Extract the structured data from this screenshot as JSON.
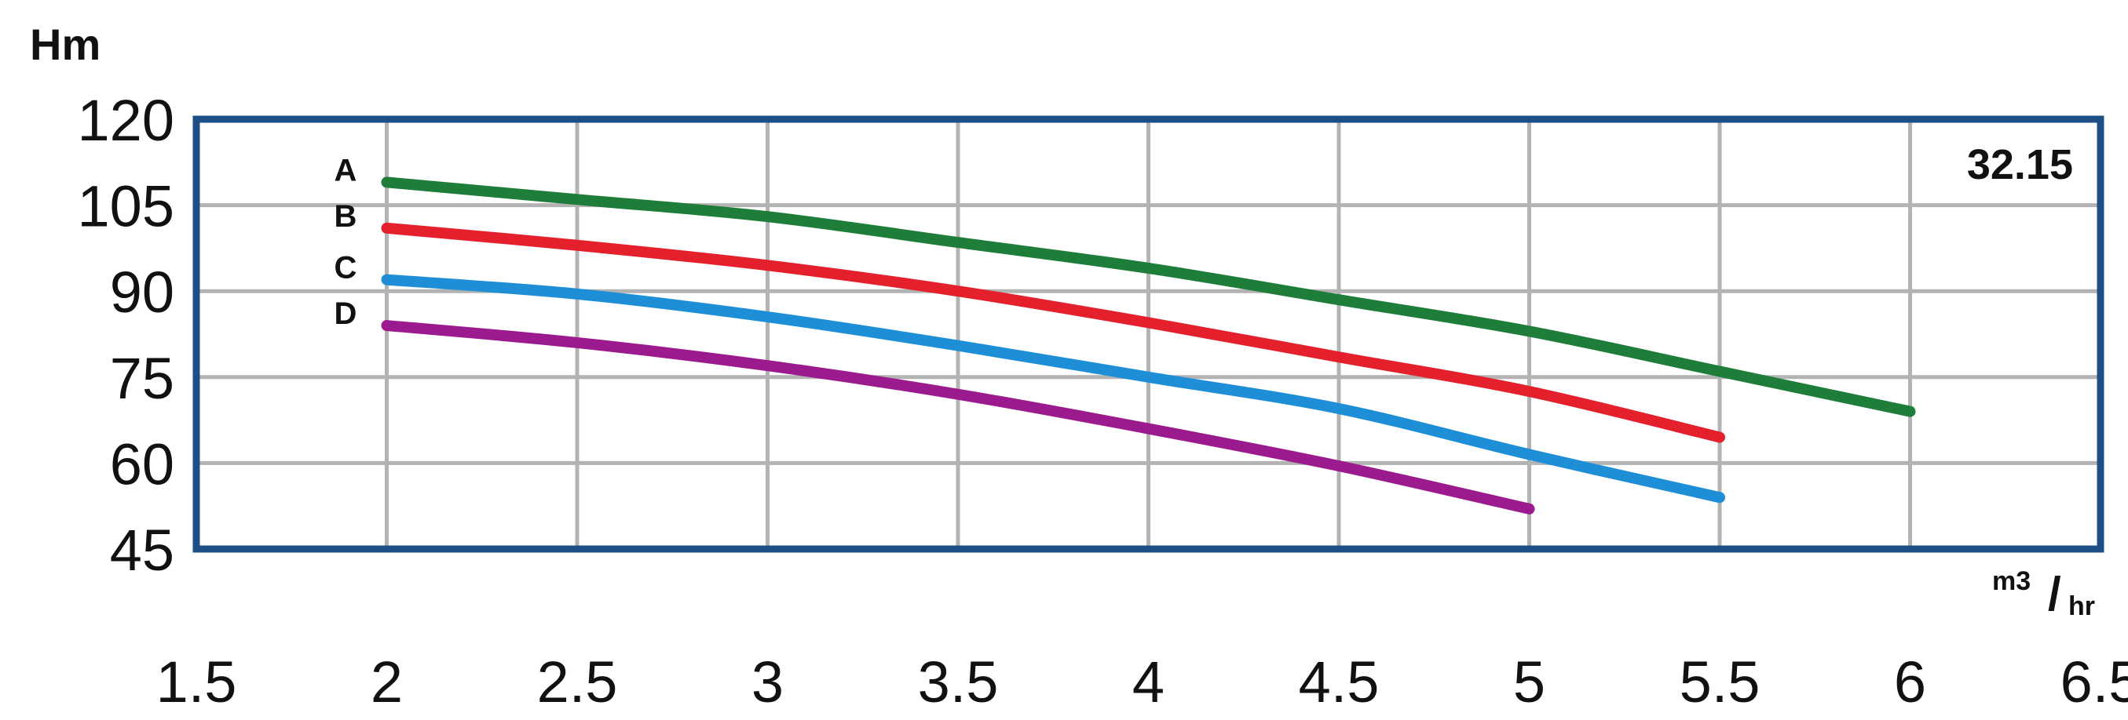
{
  "chart_data": {
    "type": "line",
    "ylabel": "Hm",
    "xlabel_unit": {
      "num": "m3",
      "slash": "/",
      "den": "hr"
    },
    "model_label": "32.15",
    "x_ticks": [
      "1.5",
      "2",
      "2.5",
      "3",
      "3.5",
      "4",
      "4.5",
      "5",
      "5.5",
      "6",
      "6.5"
    ],
    "y_ticks": [
      "120",
      "105",
      "90",
      "75",
      "60",
      "45"
    ],
    "xlim": [
      1.5,
      6.5
    ],
    "ylim": [
      45,
      120
    ],
    "grid": true,
    "frame_color": "#1d4f86",
    "grid_color": "#b3b3b3",
    "series": [
      {
        "name": "A",
        "color": "#1f7d3a",
        "x": [
          2,
          2.5,
          3,
          3.5,
          4,
          4.5,
          5,
          5.5,
          6
        ],
        "y": [
          109,
          106,
          103,
          98.5,
          94,
          88.5,
          83,
          76,
          69
        ]
      },
      {
        "name": "B",
        "color": "#e3202b",
        "x": [
          2,
          2.5,
          3,
          3.5,
          4,
          4.5,
          5,
          5.5
        ],
        "y": [
          101,
          98,
          94.5,
          90,
          84.5,
          78.5,
          72.5,
          64.5
        ]
      },
      {
        "name": "C",
        "color": "#1e8fd6",
        "x": [
          2,
          2.5,
          3,
          3.5,
          4,
          4.5,
          5,
          5.5
        ],
        "y": [
          92,
          89.5,
          85.5,
          80.5,
          75,
          69.5,
          61.5,
          54
        ]
      },
      {
        "name": "D",
        "color": "#9b1a8e",
        "x": [
          2,
          2.5,
          3,
          3.5,
          4,
          4.5,
          5
        ],
        "y": [
          84,
          81,
          77,
          72,
          66,
          59.5,
          52
        ]
      }
    ]
  }
}
